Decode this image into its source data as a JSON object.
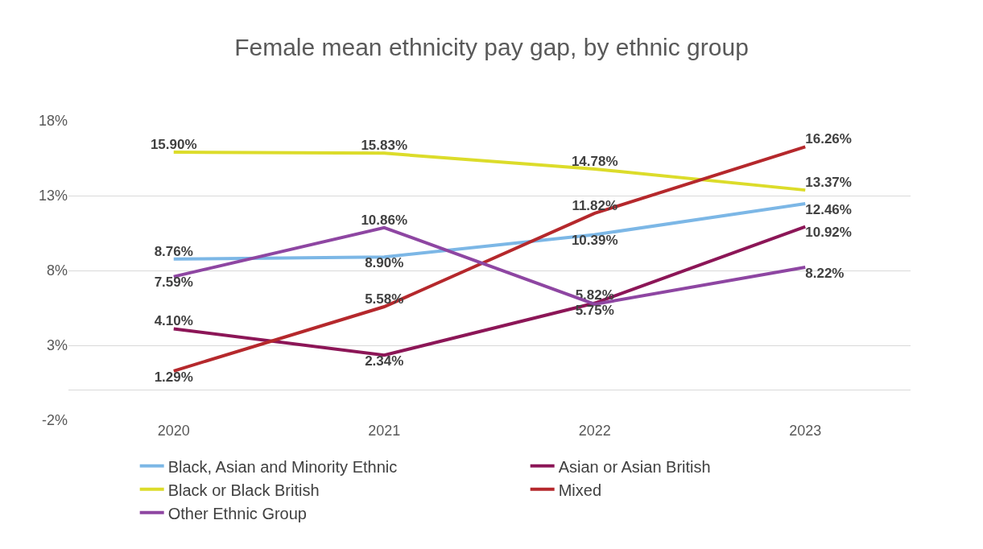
{
  "chart_data": {
    "type": "line",
    "title": "Female mean ethnicity pay gap, by ethnic group",
    "categories": [
      "2020",
      "2021",
      "2022",
      "2023"
    ],
    "series": [
      {
        "name": "Black, Asian and Minority Ethnic",
        "color": "#7cb7e6",
        "values": [
          8.76,
          8.9,
          10.39,
          12.46
        ],
        "value_labels": [
          "8.76%",
          "8.90%",
          "10.39%",
          "12.46%"
        ]
      },
      {
        "name": "Asian or Asian British",
        "color": "#8c1657",
        "values": [
          4.1,
          2.34,
          5.82,
          10.92
        ],
        "value_labels": [
          "4.10%",
          "2.34%",
          "5.82%",
          "10.92%"
        ]
      },
      {
        "name": "Black or Black British",
        "color": "#dcdc2a",
        "values": [
          15.9,
          15.83,
          14.78,
          13.37
        ],
        "value_labels": [
          "15.90%",
          "15.83%",
          "14.78%",
          "13.37%"
        ]
      },
      {
        "name": "Mixed",
        "color": "#b5282c",
        "values": [
          1.29,
          5.58,
          11.82,
          16.26
        ],
        "value_labels": [
          "1.29%",
          "5.58%",
          "11.82%",
          "16.26%"
        ]
      },
      {
        "name": "Other Ethnic Group",
        "color": "#8e46a2",
        "values": [
          7.59,
          10.86,
          5.75,
          8.22
        ],
        "value_labels": [
          "7.59%",
          "10.86%",
          "5.75%",
          "8.22%"
        ]
      }
    ],
    "ylim": [
      -2,
      18
    ],
    "yticks": [
      {
        "value": -2,
        "label": "-2%"
      },
      {
        "value": 3,
        "label": "3%"
      },
      {
        "value": 8,
        "label": "8%"
      },
      {
        "value": 13,
        "label": "13%"
      },
      {
        "value": 18,
        "label": "18%"
      }
    ],
    "grid": "y",
    "legend": "bottom",
    "marker": "none",
    "line_style": "solid"
  }
}
